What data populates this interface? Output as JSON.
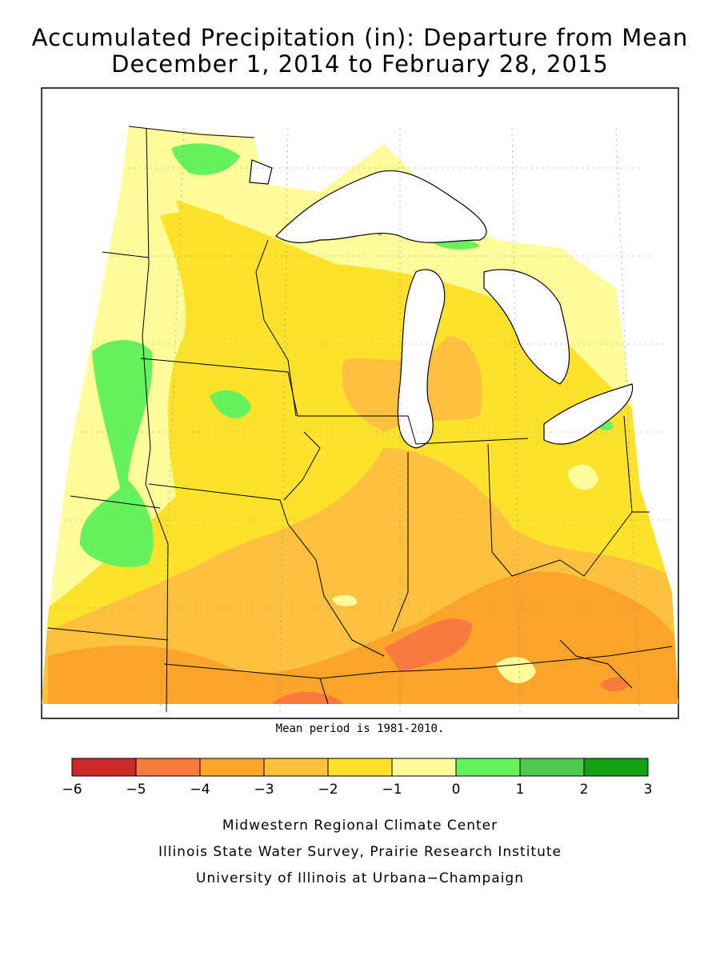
{
  "title_line1": "Accumulated Precipitation (in): Departure from Mean",
  "title_line2": "December 1, 2014 to February 28, 2015",
  "note": "Mean period is 1981-2010.",
  "legend": {
    "bins": [
      {
        "from": -6,
        "to": -5,
        "color": "#cc2a2a"
      },
      {
        "from": -5,
        "to": -4,
        "color": "#f97a3e"
      },
      {
        "from": -4,
        "to": -3,
        "color": "#fba42a"
      },
      {
        "from": -3,
        "to": -2,
        "color": "#fdc03f"
      },
      {
        "from": -2,
        "to": -1,
        "color": "#fde22c"
      },
      {
        "from": -1,
        "to": 0,
        "color": "#fefb9a"
      },
      {
        "from": 0,
        "to": 1,
        "color": "#66f25c"
      },
      {
        "from": 1,
        "to": 2,
        "color": "#4fc94f"
      },
      {
        "from": 2,
        "to": 3,
        "color": "#13a213"
      }
    ],
    "tick_labels": [
      "−6",
      "−5",
      "−4",
      "−3",
      "−2",
      "−1",
      "0",
      "1",
      "2",
      "3"
    ]
  },
  "credits": [
    "Midwestern Regional Climate Center",
    "Illinois State Water Survey, Prairie Research Institute",
    "University of Illinois at Urbana−Champaign"
  ]
}
